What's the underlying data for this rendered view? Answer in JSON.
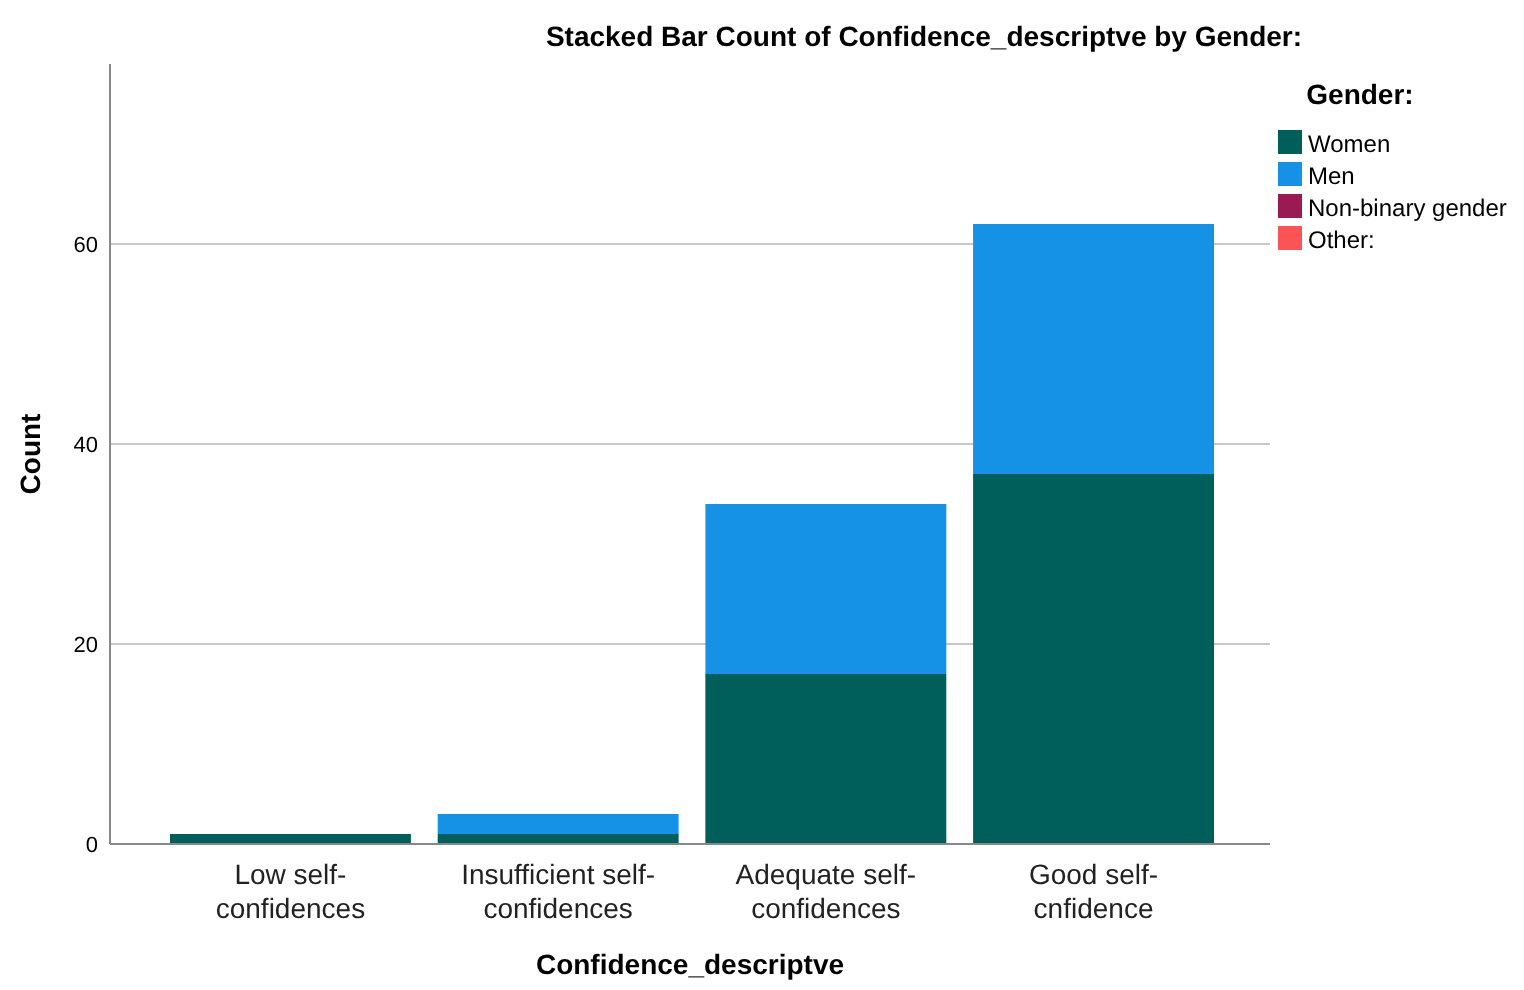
{
  "chart_data": {
    "type": "bar",
    "title": "Stacked Bar Count of Confidence_descriptve by Gender:",
    "xlabel": "Confidence_descriptve",
    "ylabel": "Count",
    "legend_title": "Gender:",
    "categories": [
      "Low self-confidences",
      "Insufficient self-confidences",
      "Adequate self-confidences",
      "Good self-cnfidence"
    ],
    "series": [
      {
        "name": "Women",
        "color": "#005e5b",
        "values": [
          1,
          1,
          17,
          37
        ]
      },
      {
        "name": "Men",
        "color": "#1592e6",
        "values": [
          0,
          2,
          17,
          25
        ]
      },
      {
        "name": "Non-binary gender",
        "color": "#9b1a54",
        "values": [
          0,
          0,
          0,
          0
        ]
      },
      {
        "name": "Other:",
        "color": "#fb5456",
        "values": [
          0,
          0,
          0,
          0
        ]
      }
    ],
    "stacked": true,
    "ylim": [
      0,
      78
    ],
    "yticks": [
      0,
      20,
      40,
      60
    ],
    "grid": "y",
    "legend": "right"
  }
}
